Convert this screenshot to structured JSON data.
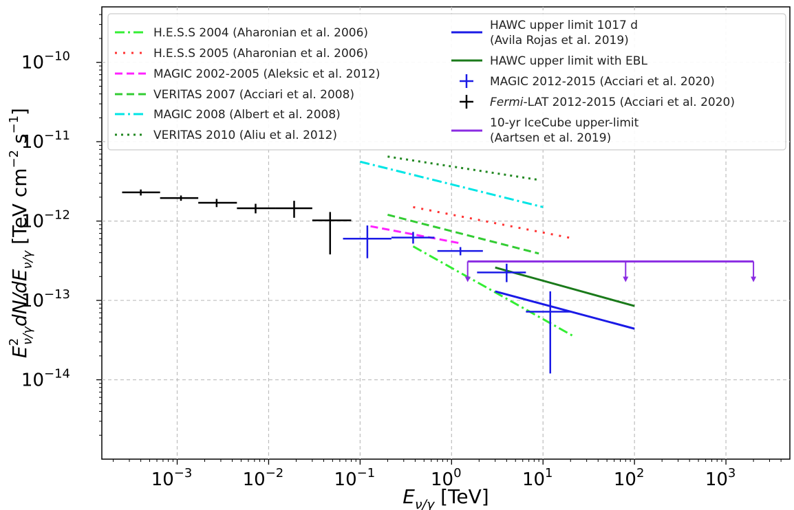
{
  "chart_data": {
    "type": "scatter",
    "x_scale": "log",
    "y_scale": "log",
    "xlim": [
      0.00015,
      5000
    ],
    "ylim": [
      1e-15,
      5e-10
    ],
    "grid": true,
    "xlabel": "E_{ν/γ} [TeV]",
    "ylabel": "E²_{ν/γ}dN/dE_{ν/γ} [TeV cm⁻² s⁻¹]",
    "x_ticks": [
      {
        "value": 0.001,
        "label": "10",
        "exp": "−3"
      },
      {
        "value": 0.01,
        "label": "10",
        "exp": "−2"
      },
      {
        "value": 0.1,
        "label": "10",
        "exp": "−1"
      },
      {
        "value": 1,
        "label": "10",
        "exp": "0"
      },
      {
        "value": 10,
        "label": "10",
        "exp": "1"
      },
      {
        "value": 100,
        "label": "10",
        "exp": "2"
      },
      {
        "value": 1000,
        "label": "10",
        "exp": "3"
      }
    ],
    "y_ticks": [
      {
        "value": 1e-14,
        "label": "10",
        "exp": "−14"
      },
      {
        "value": 1e-13,
        "label": "10",
        "exp": "−13"
      },
      {
        "value": 1e-12,
        "label": "10",
        "exp": "−12"
      },
      {
        "value": 1e-11,
        "label": "10",
        "exp": "−11"
      },
      {
        "value": 1e-10,
        "label": "10",
        "exp": "−10"
      }
    ],
    "legend_left": [
      "H.E.S.S 2004 (Aharonian et al. 2006)",
      "H.E.S.S 2005 (Aharonian et al. 2006)",
      "MAGIC 2002-2005 (Aleksic et al. 2012)",
      "VERITAS 2007 (Acciari et al. 2008)",
      "MAGIC 2008 (Albert et al. 2008)",
      "VERITAS 2010 (Aliu et al. 2012)"
    ],
    "legend_right": [
      "HAWC upper limit 1017 d\n(Avila Rojas et al. 2019)",
      "HAWC upper limit with EBL",
      "MAGIC 2012-2015 (Acciari et al. 2020)",
      "Fermi-LAT 2012-2015 (Acciari et al. 2020)",
      "10-yr IceCube upper-limit\n(Aartsen et al. 2019)"
    ],
    "legend_placement": "top",
    "line_series": [
      {
        "name": "H.E.S.S 2004 (Aharonian et al. 2006)",
        "color": "#33ee33",
        "dash": "14 5 3 5",
        "x": [
          0.38,
          21
        ],
        "y": [
          4.8e-13,
          3.6e-14
        ]
      },
      {
        "name": "H.E.S.S 2005 (Aharonian et al. 2006)",
        "color": "#ff3333",
        "dash": "3 9",
        "x": [
          0.38,
          22
        ],
        "y": [
          1.5e-12,
          6e-13
        ]
      },
      {
        "name": "MAGIC 2002-2005 (Aleksic et al. 2012)",
        "color": "#ff22ff",
        "dash": "11 6",
        "x": [
          0.13,
          1.3
        ],
        "y": [
          8.6e-13,
          5.2e-13
        ]
      },
      {
        "name": "VERITAS 2007 (Acciari et al. 2008)",
        "color": "#33cc33",
        "dash": "11 6",
        "x": [
          0.2,
          9
        ],
        "y": [
          1.2e-12,
          3.9e-13
        ]
      },
      {
        "name": "MAGIC 2008 (Albert et al. 2008)",
        "color": "#00e5e5",
        "dash": "14 5 3 5",
        "x": [
          0.1,
          10
        ],
        "y": [
          5.6e-12,
          1.5e-12
        ]
      },
      {
        "name": "VERITAS 2010 (Aliu et al. 2012)",
        "color": "#228822",
        "dash": "3 6",
        "x": [
          0.2,
          9
        ],
        "y": [
          6.5e-12,
          3.3e-12
        ]
      },
      {
        "name": "HAWC upper limit 1017 d (Avila Rojas et al. 2019)",
        "color": "#1a1ae6",
        "dash": "",
        "x": [
          3,
          100
        ],
        "y": [
          1.3e-13,
          4.4e-14
        ]
      },
      {
        "name": "HAWC upper limit with EBL",
        "color": "#1a7a1a",
        "dash": "",
        "x": [
          3,
          100
        ],
        "y": [
          2.6e-13,
          8.5e-14
        ]
      }
    ],
    "magic_points": {
      "name": "MAGIC 2012-2015 (Acciari et al. 2020)",
      "color": "#1a1ae6",
      "points": [
        {
          "x": 0.12,
          "xlo": 0.065,
          "xhi": 0.22,
          "y": 6e-13,
          "ylo": 3.4e-13,
          "yhi": 8.8e-13
        },
        {
          "x": 0.38,
          "xlo": 0.22,
          "xhi": 0.65,
          "y": 6.2e-13,
          "ylo": 5.2e-13,
          "yhi": 7.3e-13
        },
        {
          "x": 1.25,
          "xlo": 0.7,
          "xhi": 2.2,
          "y": 4.2e-13,
          "ylo": 3.7e-13,
          "yhi": 4.7e-13
        },
        {
          "x": 4.0,
          "xlo": 1.9,
          "xhi": 6.5,
          "y": 2.25e-13,
          "ylo": 1.7e-13,
          "yhi": 2.9e-13
        },
        {
          "x": 12,
          "xlo": 6.5,
          "xhi": 20,
          "y": 7.2e-14,
          "ylo": 1.2e-14,
          "yhi": 1.3e-13
        }
      ]
    },
    "fermi_points": {
      "name": "Fermi-LAT 2012-2015 (Acciari et al. 2020)",
      "color": "#000000",
      "points": [
        {
          "x": 0.0004,
          "xlo": 0.00025,
          "xhi": 0.00065,
          "y": 2.3e-12,
          "ylo": 2.1e-12,
          "yhi": 2.5e-12
        },
        {
          "x": 0.0011,
          "xlo": 0.00065,
          "xhi": 0.0017,
          "y": 1.95e-12,
          "ylo": 1.8e-12,
          "yhi": 2.1e-12
        },
        {
          "x": 0.0027,
          "xlo": 0.0017,
          "xhi": 0.0045,
          "y": 1.7e-12,
          "ylo": 1.5e-12,
          "yhi": 1.9e-12
        },
        {
          "x": 0.0072,
          "xlo": 0.0045,
          "xhi": 0.012,
          "y": 1.45e-12,
          "ylo": 1.25e-12,
          "yhi": 1.65e-12
        },
        {
          "x": 0.019,
          "xlo": 0.012,
          "xhi": 0.03,
          "y": 1.45e-12,
          "ylo": 1.1e-12,
          "yhi": 1.8e-12
        },
        {
          "x": 0.047,
          "xlo": 0.03,
          "xhi": 0.08,
          "y": 1.02e-12,
          "ylo": 3.8e-13,
          "yhi": 1.3e-12
        }
      ]
    },
    "icecube_limit": {
      "name": "10-yr IceCube upper-limit (Aartsen et al. 2019)",
      "color": "#8a2be2",
      "x_start": 1.5,
      "x_end": 2000,
      "y": 3.1e-13,
      "arrows": [
        {
          "x": 1.5,
          "y_to": 1.7e-13
        },
        {
          "x": 80,
          "y_to": 1.7e-13
        },
        {
          "x": 2000,
          "y_to": 1.7e-13
        }
      ]
    }
  }
}
